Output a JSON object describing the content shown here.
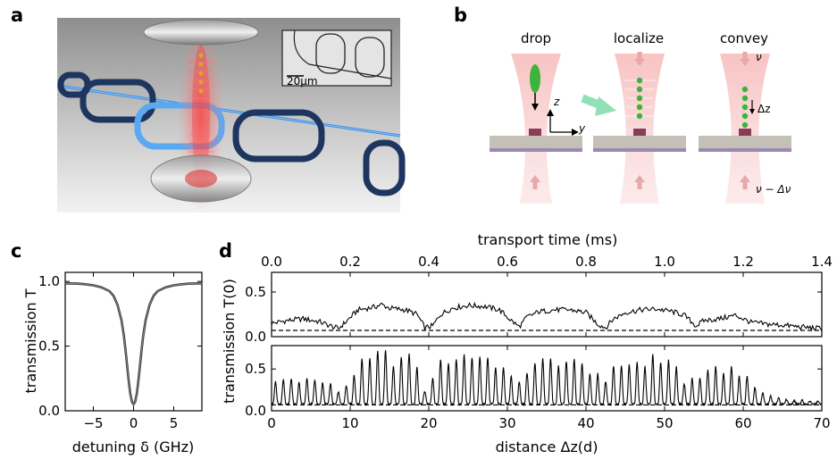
{
  "panels": {
    "a": {
      "label": "a",
      "inset_scale": "20μm"
    },
    "b": {
      "label": "b",
      "stages": [
        "drop",
        "localize",
        "convey"
      ],
      "axis_z": "z",
      "axis_y": "y",
      "shift_label": "Δz",
      "freq_top": "ν",
      "freq_bottom": "ν − Δν"
    },
    "c": {
      "label": "c",
      "ylabel": "transmission T",
      "xlabel": "detuning δ (GHz)"
    },
    "d": {
      "label": "d",
      "top_xlabel": "transport time (ms)",
      "ylabel": "transmission T(0)",
      "xlabel": "distance Δz(d)"
    }
  },
  "chart_data": [
    {
      "panel": "c",
      "type": "line",
      "xlabel": "detuning δ (GHz)",
      "ylabel": "transmission T",
      "xlim": [
        -8.5,
        8.5
      ],
      "ylim": [
        0.0,
        1.07
      ],
      "xticks": [
        -5,
        0,
        5
      ],
      "xtick_labels": [
        "−5",
        "0",
        "5"
      ],
      "yticks": [
        0.0,
        0.5,
        1.0
      ],
      "ytick_labels": [
        "0.0",
        "0.5",
        "1.0"
      ],
      "dip": {
        "center": 0.0,
        "baseline": 0.99,
        "min": 0.05,
        "fwhm_ghz": 1.6
      },
      "x": [
        -8.5,
        -7,
        -6,
        -5,
        -4,
        -3,
        -2.5,
        -2,
        -1.5,
        -1.2,
        -1,
        -0.8,
        -0.6,
        -0.4,
        -0.2,
        0,
        0.2,
        0.4,
        0.6,
        0.8,
        1,
        1.2,
        1.5,
        2,
        2.5,
        3,
        4,
        5,
        6,
        7,
        8.5
      ],
      "y": [
        0.985,
        0.983,
        0.978,
        0.97,
        0.955,
        0.925,
        0.89,
        0.82,
        0.7,
        0.58,
        0.47,
        0.35,
        0.23,
        0.13,
        0.07,
        0.05,
        0.07,
        0.13,
        0.23,
        0.35,
        0.47,
        0.58,
        0.7,
        0.82,
        0.89,
        0.925,
        0.955,
        0.97,
        0.978,
        0.983,
        0.985
      ]
    },
    {
      "panel": "d-top",
      "type": "line",
      "x_top_label": "transport time (ms)",
      "x_top_ticks": [
        0.0,
        0.2,
        0.4,
        0.6,
        0.8,
        1.0,
        1.2,
        1.4
      ],
      "x_top_tick_labels": [
        "0.0",
        "0.2",
        "0.4",
        "0.6",
        "0.8",
        "1.0",
        "1.2",
        "1.4"
      ],
      "xlim": [
        0,
        70
      ],
      "ylim": [
        0,
        0.72
      ],
      "yticks": [
        0.0,
        0.5
      ],
      "ytick_labels": [
        "0.0",
        "0.5"
      ],
      "baseline": 0.07,
      "x": [
        0,
        2,
        4,
        6,
        7.5,
        8.5,
        9.5,
        11,
        13,
        14,
        15,
        17,
        18.5,
        19.5,
        20.5,
        21.5,
        23,
        25,
        27,
        29,
        30.5,
        31.5,
        32.5,
        34,
        36,
        38,
        40,
        41.5,
        42.5,
        43.5,
        45,
        47,
        49,
        51,
        52.5,
        54,
        55,
        57,
        59,
        61,
        63,
        65,
        67,
        70
      ],
      "y": [
        0.15,
        0.18,
        0.2,
        0.17,
        0.12,
        0.09,
        0.17,
        0.3,
        0.33,
        0.36,
        0.32,
        0.3,
        0.25,
        0.1,
        0.12,
        0.25,
        0.32,
        0.35,
        0.34,
        0.3,
        0.18,
        0.11,
        0.22,
        0.28,
        0.3,
        0.3,
        0.27,
        0.14,
        0.1,
        0.2,
        0.27,
        0.3,
        0.31,
        0.28,
        0.24,
        0.12,
        0.18,
        0.2,
        0.24,
        0.16,
        0.14,
        0.13,
        0.11,
        0.09
      ]
    },
    {
      "panel": "d-bottom",
      "type": "line",
      "xlabel": "distance Δz(d)",
      "xlim": [
        0,
        70
      ],
      "ylim": [
        0,
        0.78
      ],
      "xticks": [
        0,
        10,
        20,
        30,
        40,
        50,
        60,
        70
      ],
      "xtick_labels": [
        "0",
        "10",
        "20",
        "30",
        "40",
        "50",
        "60",
        "70"
      ],
      "yticks": [
        0.0,
        0.5
      ],
      "ytick_labels": [
        "0.0",
        "0.5"
      ],
      "baseline": 0.07,
      "peak_period": 1.0,
      "peak_envelope_x": [
        0,
        2,
        5,
        7,
        8.5,
        9.5,
        11,
        13,
        14,
        15.5,
        17,
        18.5,
        19.5,
        20.5,
        22,
        24,
        26,
        28,
        30,
        31,
        32,
        34,
        36,
        38,
        40,
        41.5,
        42.5,
        43.5,
        45,
        47,
        49,
        50.5,
        51.5,
        52.5,
        53.5,
        55,
        57,
        59,
        60.5,
        62,
        63,
        65,
        70
      ],
      "peak_envelope_y": [
        0.33,
        0.38,
        0.36,
        0.33,
        0.22,
        0.3,
        0.52,
        0.6,
        0.68,
        0.6,
        0.62,
        0.56,
        0.2,
        0.42,
        0.6,
        0.64,
        0.66,
        0.6,
        0.46,
        0.26,
        0.45,
        0.55,
        0.6,
        0.58,
        0.5,
        0.44,
        0.3,
        0.48,
        0.55,
        0.58,
        0.6,
        0.62,
        0.5,
        0.3,
        0.38,
        0.42,
        0.48,
        0.5,
        0.36,
        0.22,
        0.18,
        0.13,
        0.1
      ]
    }
  ]
}
